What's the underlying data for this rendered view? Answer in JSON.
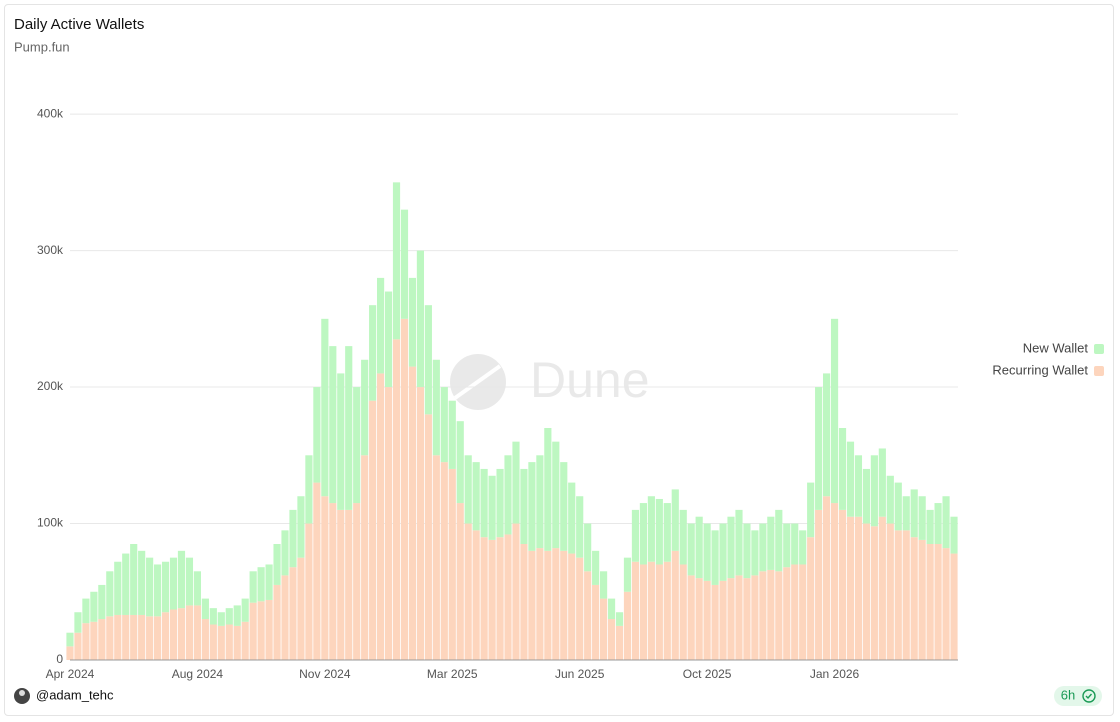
{
  "chart_data": {
    "type": "bar",
    "stacked": true,
    "title": "Daily Active Wallets",
    "subtitle": "Pump.fun",
    "watermark": "Dune",
    "author": "@adam_tehc",
    "refresh": "6h",
    "categories": [
      "Apr 2024",
      null,
      null,
      null,
      null,
      null,
      null,
      null,
      null,
      null,
      null,
      null,
      null,
      null,
      null,
      null,
      "Aug 2024",
      null,
      null,
      null,
      null,
      null,
      null,
      null,
      null,
      null,
      null,
      null,
      null,
      null,
      null,
      null,
      "Nov 2024",
      null,
      null,
      null,
      null,
      null,
      null,
      null,
      null,
      null,
      null,
      null,
      null,
      null,
      null,
      null,
      "Mar 2025",
      null,
      null,
      null,
      null,
      null,
      null,
      null,
      null,
      null,
      null,
      null,
      null,
      null,
      null,
      null,
      "Jun 2025",
      null,
      null,
      null,
      null,
      null,
      null,
      null,
      null,
      null,
      null,
      null,
      null,
      null,
      null,
      null,
      "Oct 2025",
      null,
      null,
      null,
      null,
      null,
      null,
      null,
      null,
      null,
      null,
      null,
      null,
      null,
      null,
      null,
      "Jan 2026",
      null,
      null,
      null,
      null,
      null,
      null,
      null,
      null,
      null,
      null,
      null,
      null,
      null,
      null,
      null
    ],
    "series": [
      {
        "name": "New Wallet",
        "color": "#bdf7c1",
        "values": [
          10000,
          15000,
          18000,
          22000,
          25000,
          33000,
          39000,
          45000,
          52000,
          47000,
          43000,
          38000,
          37000,
          38000,
          42000,
          35000,
          25000,
          15000,
          12000,
          10000,
          12000,
          15000,
          17000,
          23000,
          25000,
          26000,
          30000,
          33000,
          42000,
          45000,
          50000,
          70000,
          130000,
          115000,
          100000,
          120000,
          85000,
          70000,
          70000,
          70000,
          70000,
          115000,
          80000,
          65000,
          100000,
          80000,
          70000,
          55000,
          50000,
          60000,
          50000,
          50000,
          50000,
          47000,
          50000,
          58000,
          60000,
          55000,
          65000,
          68000,
          90000,
          78000,
          65000,
          52000,
          45000,
          35000,
          25000,
          20000,
          15000,
          10000,
          25000,
          38000,
          45000,
          48000,
          48000,
          43000,
          45000,
          40000,
          38000,
          45000,
          42000,
          40000,
          42000,
          45000,
          48000,
          40000,
          33000,
          35000,
          39000,
          45000,
          32000,
          30000,
          25000,
          40000,
          90000,
          90000,
          135000,
          60000,
          55000,
          45000,
          40000,
          52000,
          50000,
          35000,
          35000,
          25000,
          35000,
          32000,
          25000,
          30000,
          38000,
          27000
        ]
      },
      {
        "name": "Recurring Wallet",
        "color": "#fdd5bd",
        "values": [
          10000,
          20000,
          27000,
          28000,
          30000,
          32000,
          33000,
          33000,
          33000,
          33000,
          32000,
          32000,
          35000,
          37000,
          38000,
          40000,
          40000,
          30000,
          26000,
          25000,
          26000,
          25000,
          28000,
          42000,
          43000,
          44000,
          55000,
          62000,
          68000,
          75000,
          100000,
          130000,
          120000,
          115000,
          110000,
          110000,
          115000,
          150000,
          190000,
          210000,
          200000,
          235000,
          250000,
          215000,
          200000,
          180000,
          150000,
          145000,
          140000,
          115000,
          100000,
          95000,
          90000,
          88000,
          90000,
          92000,
          100000,
          85000,
          80000,
          82000,
          80000,
          82000,
          80000,
          78000,
          75000,
          65000,
          55000,
          45000,
          30000,
          25000,
          50000,
          72000,
          70000,
          72000,
          70000,
          72000,
          80000,
          70000,
          62000,
          60000,
          58000,
          55000,
          58000,
          60000,
          62000,
          60000,
          62000,
          65000,
          66000,
          65000,
          68000,
          70000,
          70000,
          90000,
          110000,
          120000,
          115000,
          110000,
          105000,
          105000,
          100000,
          98000,
          105000,
          100000,
          95000,
          95000,
          90000,
          88000,
          85000,
          85000,
          82000,
          78000
        ]
      }
    ],
    "ylim": [
      0,
      425000
    ],
    "yticks": [
      0,
      {
        "value": 100000,
        "label": "100k"
      },
      {
        "value": 200000,
        "label": "200k"
      },
      {
        "value": 300000,
        "label": "300k"
      },
      {
        "value": 400000,
        "label": "400k"
      }
    ],
    "grid": true,
    "legend": "right"
  }
}
